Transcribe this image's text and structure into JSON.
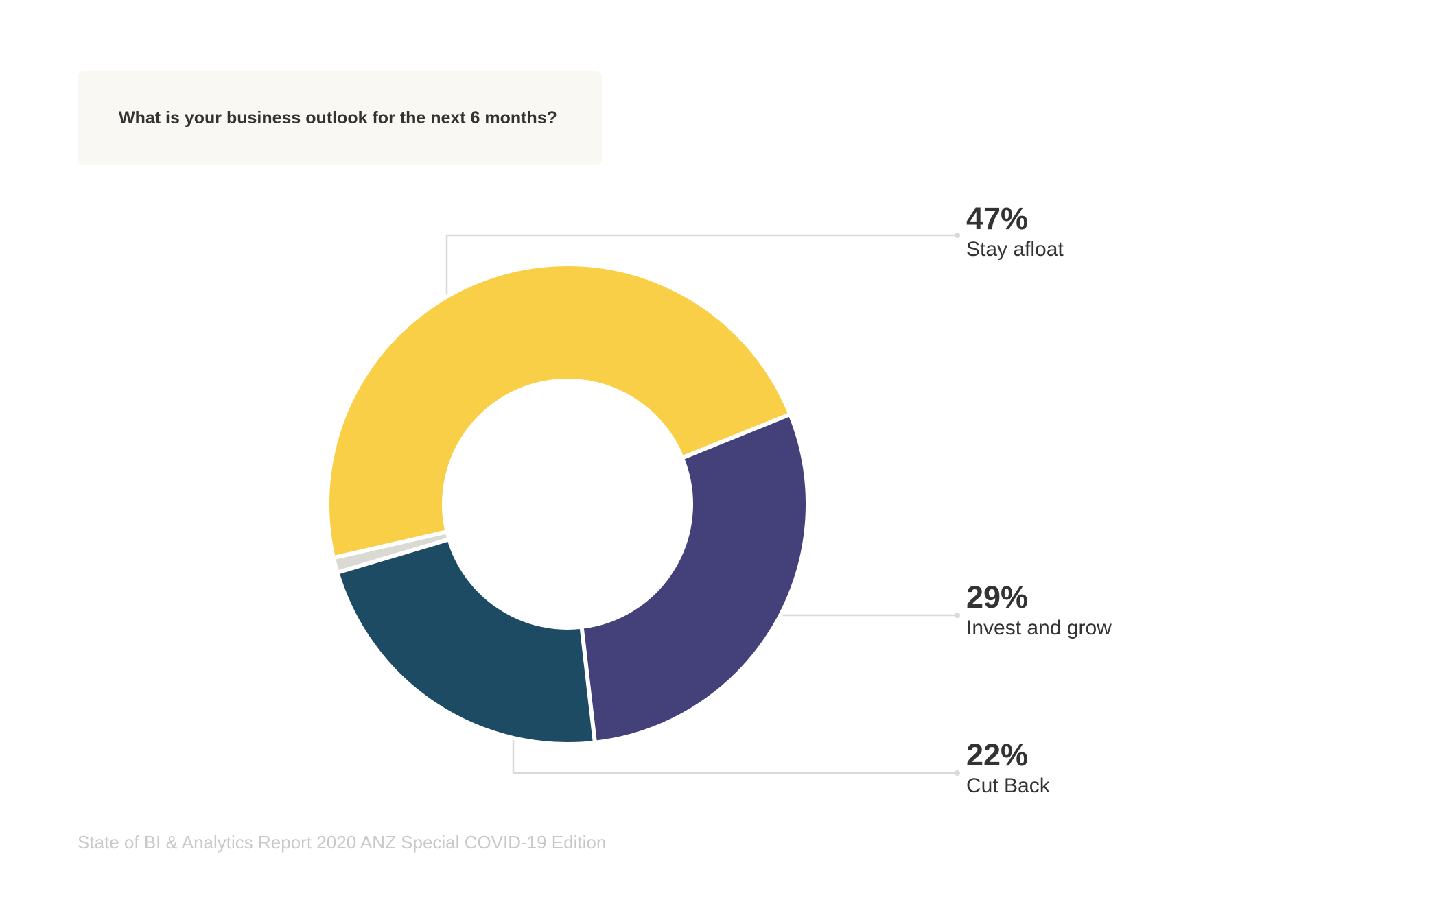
{
  "question": "What is your business outlook for the next 6 months?",
  "footer": "State of BI & Analytics Report 2020 ANZ Special COVID-19 Edition",
  "colors": {
    "stay_afloat": "#f9cf47",
    "invest_and_grow": "#444079",
    "cut_back": "#1d4b63",
    "other": "#dbd9d4",
    "leader": "#d9d9d6"
  },
  "chart_data": {
    "type": "pie",
    "categories": [
      "Stay afloat",
      "Invest and grow",
      "Cut Back",
      "Other"
    ],
    "values": [
      47,
      29,
      22,
      1
    ],
    "labels": {
      "stay_afloat": {
        "pct": "47%",
        "name": "Stay afloat"
      },
      "invest_and_grow": {
        "pct": "29%",
        "name": "Invest and grow"
      },
      "cut_back": {
        "pct": "22%",
        "name": "Cut Back"
      }
    }
  }
}
